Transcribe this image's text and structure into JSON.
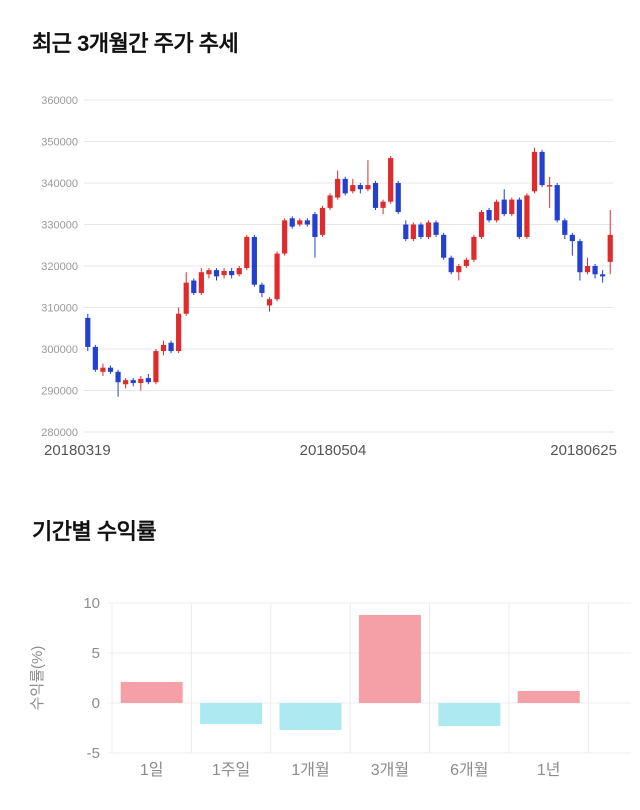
{
  "chart_data": [
    {
      "type": "candlestick",
      "title": "최근 3개월간 주가 추세",
      "ylim": [
        280000,
        360000
      ],
      "y_ticks": [
        360000,
        350000,
        340000,
        330000,
        320000,
        310000,
        300000,
        290000,
        280000
      ],
      "x_tick_labels": [
        "20180319",
        "20180504",
        "20180625"
      ],
      "up_color": "#df2b2b",
      "down_color": "#2440cf",
      "grid_color": "#e7e7e7",
      "tick_text_color": "#999999",
      "date_text_color": "#555555",
      "candles": [
        [
          307500,
          308500,
          299500,
          300500
        ],
        [
          300500,
          301000,
          294500,
          295000
        ],
        [
          294500,
          296500,
          293500,
          295500
        ],
        [
          295500,
          296000,
          294000,
          294500
        ],
        [
          294500,
          295000,
          288500,
          292000
        ],
        [
          291500,
          293000,
          290500,
          292500
        ],
        [
          292500,
          293000,
          291000,
          291800
        ],
        [
          291800,
          293500,
          290000,
          292800
        ],
        [
          293000,
          294000,
          291500,
          292000
        ],
        [
          292000,
          300000,
          291500,
          299500
        ],
        [
          299500,
          302000,
          298500,
          301000
        ],
        [
          301500,
          302000,
          299000,
          299500
        ],
        [
          299500,
          310000,
          299000,
          308500
        ],
        [
          308500,
          318500,
          308000,
          316000
        ],
        [
          316500,
          317000,
          313000,
          313500
        ],
        [
          313500,
          319500,
          313000,
          318500
        ],
        [
          318000,
          319500,
          317000,
          319000
        ],
        [
          319000,
          319500,
          316500,
          317500
        ],
        [
          317800,
          319500,
          317000,
          318800
        ],
        [
          318800,
          319500,
          317000,
          317800
        ],
        [
          318000,
          320000,
          317500,
          319500
        ],
        [
          319500,
          327500,
          319000,
          327000
        ],
        [
          327000,
          327500,
          315000,
          315500
        ],
        [
          315500,
          316000,
          312500,
          313500
        ],
        [
          310500,
          312500,
          309000,
          312000
        ],
        [
          312000,
          323500,
          311500,
          323000
        ],
        [
          323000,
          331500,
          322500,
          331000
        ],
        [
          331500,
          332000,
          329000,
          329500
        ],
        [
          330000,
          331500,
          329500,
          331000
        ],
        [
          331000,
          331500,
          329500,
          330000
        ],
        [
          332500,
          333000,
          322000,
          327000
        ],
        [
          327500,
          334500,
          327000,
          334000
        ],
        [
          334000,
          337500,
          333500,
          337000
        ],
        [
          336500,
          343000,
          336000,
          341000
        ],
        [
          341000,
          341500,
          337000,
          337500
        ],
        [
          338000,
          341000,
          337500,
          339500
        ],
        [
          339500,
          340000,
          337500,
          338500
        ],
        [
          338500,
          345500,
          338000,
          339500
        ],
        [
          340000,
          340500,
          333500,
          334000
        ],
        [
          334000,
          336000,
          332500,
          335500
        ],
        [
          335500,
          346500,
          335000,
          346000
        ],
        [
          340000,
          340500,
          332500,
          333000
        ],
        [
          330000,
          331000,
          326000,
          326500
        ],
        [
          326500,
          330500,
          326000,
          330000
        ],
        [
          330000,
          330500,
          326500,
          327000
        ],
        [
          327000,
          331000,
          326500,
          330500
        ],
        [
          330500,
          331000,
          327000,
          327500
        ],
        [
          327500,
          328000,
          321500,
          322000
        ],
        [
          322000,
          322500,
          318000,
          318500
        ],
        [
          318500,
          320500,
          316500,
          320000
        ],
        [
          320000,
          322000,
          319500,
          321500
        ],
        [
          321500,
          327500,
          321000,
          327000
        ],
        [
          327000,
          333500,
          326500,
          333000
        ],
        [
          333500,
          334000,
          330500,
          331000
        ],
        [
          331000,
          336000,
          330500,
          335500
        ],
        [
          336000,
          338500,
          332000,
          332500
        ],
        [
          332500,
          336500,
          332000,
          336000
        ],
        [
          336000,
          336500,
          326500,
          327000
        ],
        [
          327000,
          337500,
          326500,
          337000
        ],
        [
          338000,
          348500,
          337500,
          347500
        ],
        [
          347500,
          348000,
          339000,
          339500
        ],
        [
          339500,
          341500,
          334000,
          339500
        ],
        [
          339500,
          340000,
          330500,
          331000
        ],
        [
          331000,
          331500,
          326500,
          327500
        ],
        [
          327500,
          328000,
          322500,
          326000
        ],
        [
          326000,
          326500,
          316500,
          318500
        ],
        [
          318500,
          322000,
          318000,
          320000
        ],
        [
          320000,
          320500,
          317000,
          318000
        ],
        [
          318000,
          319000,
          316000,
          317500
        ],
        [
          321000,
          333500,
          318000,
          327500
        ]
      ]
    },
    {
      "type": "bar",
      "title": "기간별 수익률",
      "ylabel": "수익률(%)",
      "categories": [
        "1일",
        "1주일",
        "1개월",
        "3개월",
        "6개월",
        "1년"
      ],
      "values": [
        2.1,
        -2.1,
        -2.7,
        8.8,
        -2.3,
        1.2
      ],
      "y_ticks": [
        10,
        5,
        0,
        -5
      ],
      "ylim": [
        -5,
        10
      ],
      "positive_color": "#f5a0a6",
      "negative_color": "#ace9f1",
      "grid_color": "#ececec",
      "axis_text_color": "#8c8c8c"
    }
  ]
}
